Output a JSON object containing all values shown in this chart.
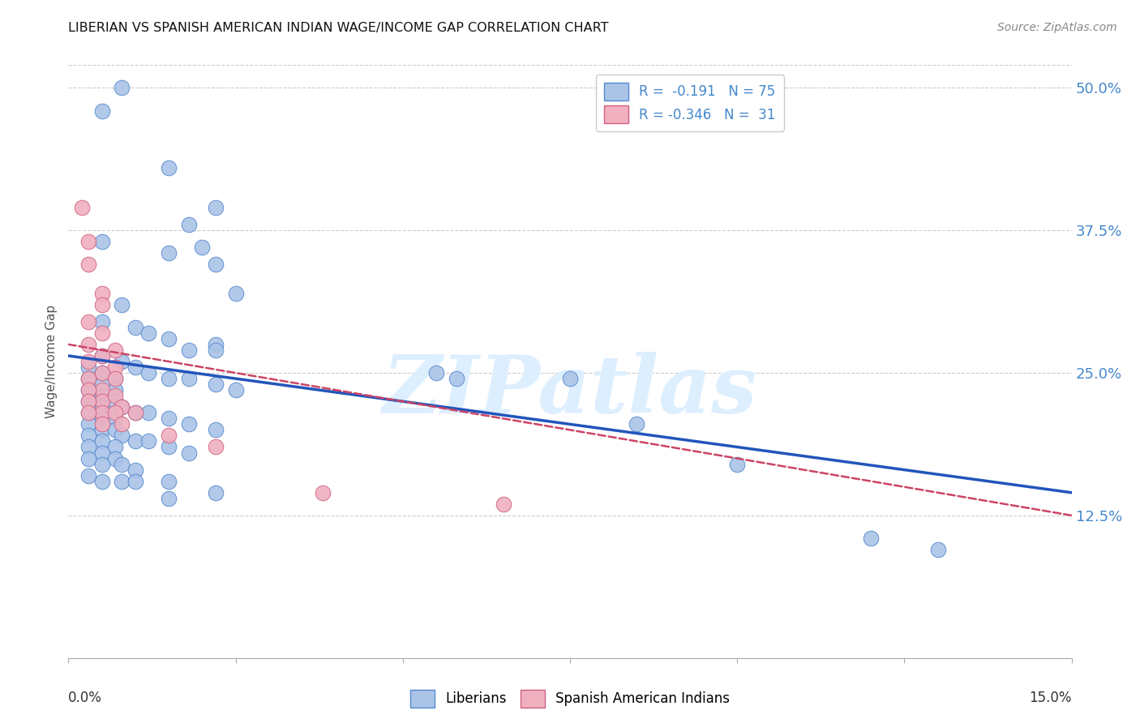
{
  "title": "LIBERIAN VS SPANISH AMERICAN INDIAN WAGE/INCOME GAP CORRELATION CHART",
  "source": "Source: ZipAtlas.com",
  "ylabel": "Wage/Income Gap",
  "x_min": 0.0,
  "x_max": 0.15,
  "y_min": 0.0,
  "y_max": 0.52,
  "y_ticks": [
    0.125,
    0.25,
    0.375,
    0.5
  ],
  "y_tick_labels": [
    "12.5%",
    "25.0%",
    "37.5%",
    "50.0%"
  ],
  "x_ticks": [
    0.0,
    0.025,
    0.05,
    0.075,
    0.1,
    0.125,
    0.15
  ],
  "liberian_color": "#aac4e8",
  "liberian_edge_color": "#5588cc",
  "spanish_color": "#f0b0c0",
  "spanish_edge_color": "#d06080",
  "liberian_line_color": "#2255bb",
  "spanish_line_color": "#cc4466",
  "watermark_text": "ZIPatlas",
  "watermark_color": "#ddeeff",
  "liberian_points": [
    [
      0.005,
      0.48
    ],
    [
      0.008,
      0.5
    ],
    [
      0.015,
      0.43
    ],
    [
      0.018,
      0.38
    ],
    [
      0.02,
      0.36
    ],
    [
      0.022,
      0.395
    ],
    [
      0.005,
      0.365
    ],
    [
      0.015,
      0.355
    ],
    [
      0.022,
      0.345
    ],
    [
      0.025,
      0.32
    ],
    [
      0.008,
      0.31
    ],
    [
      0.005,
      0.295
    ],
    [
      0.01,
      0.29
    ],
    [
      0.012,
      0.285
    ],
    [
      0.015,
      0.28
    ],
    [
      0.018,
      0.27
    ],
    [
      0.022,
      0.275
    ],
    [
      0.005,
      0.265
    ],
    [
      0.008,
      0.26
    ],
    [
      0.01,
      0.255
    ],
    [
      0.012,
      0.25
    ],
    [
      0.015,
      0.245
    ],
    [
      0.018,
      0.245
    ],
    [
      0.022,
      0.24
    ],
    [
      0.025,
      0.235
    ],
    [
      0.005,
      0.25
    ],
    [
      0.003,
      0.255
    ],
    [
      0.003,
      0.245
    ],
    [
      0.005,
      0.24
    ],
    [
      0.007,
      0.245
    ],
    [
      0.003,
      0.235
    ],
    [
      0.005,
      0.23
    ],
    [
      0.007,
      0.235
    ],
    [
      0.003,
      0.225
    ],
    [
      0.005,
      0.22
    ],
    [
      0.007,
      0.225
    ],
    [
      0.008,
      0.22
    ],
    [
      0.01,
      0.215
    ],
    [
      0.012,
      0.215
    ],
    [
      0.015,
      0.21
    ],
    [
      0.018,
      0.205
    ],
    [
      0.022,
      0.2
    ],
    [
      0.003,
      0.215
    ],
    [
      0.005,
      0.21
    ],
    [
      0.007,
      0.21
    ],
    [
      0.003,
      0.205
    ],
    [
      0.005,
      0.2
    ],
    [
      0.007,
      0.2
    ],
    [
      0.008,
      0.195
    ],
    [
      0.01,
      0.19
    ],
    [
      0.012,
      0.19
    ],
    [
      0.015,
      0.185
    ],
    [
      0.018,
      0.18
    ],
    [
      0.003,
      0.195
    ],
    [
      0.005,
      0.19
    ],
    [
      0.007,
      0.185
    ],
    [
      0.003,
      0.185
    ],
    [
      0.005,
      0.18
    ],
    [
      0.007,
      0.175
    ],
    [
      0.008,
      0.17
    ],
    [
      0.01,
      0.165
    ],
    [
      0.003,
      0.175
    ],
    [
      0.005,
      0.17
    ],
    [
      0.015,
      0.155
    ],
    [
      0.022,
      0.145
    ],
    [
      0.008,
      0.155
    ],
    [
      0.01,
      0.155
    ],
    [
      0.015,
      0.14
    ],
    [
      0.003,
      0.16
    ],
    [
      0.005,
      0.155
    ],
    [
      0.022,
      0.27
    ],
    [
      0.055,
      0.25
    ],
    [
      0.058,
      0.245
    ],
    [
      0.075,
      0.245
    ],
    [
      0.085,
      0.205
    ],
    [
      0.1,
      0.17
    ],
    [
      0.12,
      0.105
    ],
    [
      0.13,
      0.095
    ]
  ],
  "spanish_points": [
    [
      0.002,
      0.395
    ],
    [
      0.003,
      0.365
    ],
    [
      0.003,
      0.345
    ],
    [
      0.005,
      0.32
    ],
    [
      0.005,
      0.31
    ],
    [
      0.003,
      0.295
    ],
    [
      0.005,
      0.285
    ],
    [
      0.007,
      0.27
    ],
    [
      0.007,
      0.255
    ],
    [
      0.003,
      0.275
    ],
    [
      0.005,
      0.265
    ],
    [
      0.003,
      0.26
    ],
    [
      0.005,
      0.25
    ],
    [
      0.007,
      0.245
    ],
    [
      0.003,
      0.245
    ],
    [
      0.005,
      0.235
    ],
    [
      0.003,
      0.235
    ],
    [
      0.005,
      0.225
    ],
    [
      0.007,
      0.23
    ],
    [
      0.008,
      0.22
    ],
    [
      0.01,
      0.215
    ],
    [
      0.003,
      0.225
    ],
    [
      0.005,
      0.215
    ],
    [
      0.003,
      0.215
    ],
    [
      0.005,
      0.205
    ],
    [
      0.007,
      0.215
    ],
    [
      0.008,
      0.205
    ],
    [
      0.015,
      0.195
    ],
    [
      0.022,
      0.185
    ],
    [
      0.038,
      0.145
    ],
    [
      0.065,
      0.135
    ]
  ],
  "lib_line_x0": 0.0,
  "lib_line_y0": 0.265,
  "lib_line_x1": 0.15,
  "lib_line_y1": 0.145,
  "spa_line_x0": 0.0,
  "spa_line_y0": 0.275,
  "spa_line_x1": 0.1,
  "spa_line_y1": 0.175
}
